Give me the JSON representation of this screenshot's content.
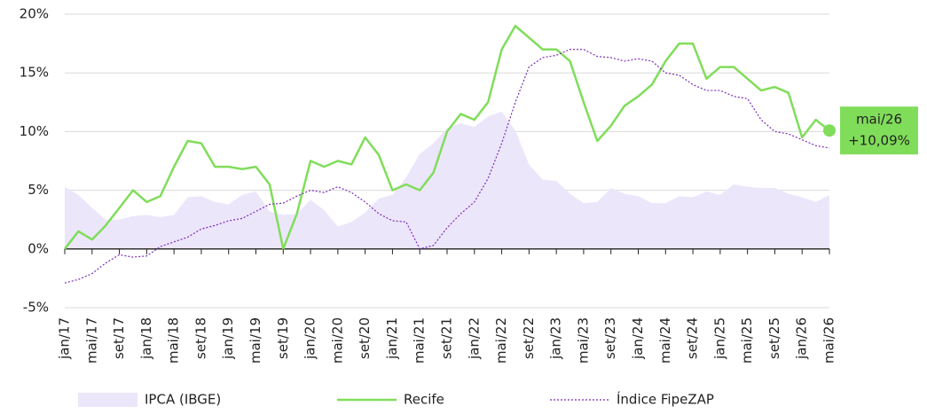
{
  "chart_data": {
    "type": "line",
    "categories": [
      "jan/17",
      null,
      "mai/17",
      null,
      "set/17",
      null,
      "jan/18",
      null,
      "mai/18",
      null,
      "set/18",
      null,
      "jan/19",
      null,
      "mai/19",
      null,
      "set/19",
      null,
      "jan/20",
      null,
      "mai/20",
      null,
      "set/20",
      null,
      "jan/21",
      null,
      "mai/21",
      null,
      "set/21",
      null,
      "jan/22",
      null,
      "mai/22",
      null,
      "set/22",
      null,
      "jan/23",
      null,
      "mai/23",
      null,
      "set/23",
      null,
      "jan/24",
      null,
      "mai/24",
      null,
      "set/24",
      null,
      "jan/25",
      null,
      "mai/25",
      null,
      "set/25",
      null,
      "jan/26",
      null,
      "mai/26"
    ],
    "series": [
      {
        "name": "IPCA (IBGE)",
        "style": "area",
        "color": "#ece6fb",
        "values": [
          5.3,
          4.6,
          3.5,
          2.5,
          2.5,
          2.8,
          2.9,
          2.7,
          2.9,
          4.4,
          4.5,
          4.0,
          3.8,
          4.6,
          4.9,
          3.2,
          2.9,
          3.0,
          4.2,
          3.3,
          1.9,
          2.3,
          3.1,
          4.3,
          4.6,
          6.1,
          8.1,
          9.0,
          10.3,
          10.7,
          10.4,
          11.3,
          11.7,
          10.1,
          7.2,
          5.9,
          5.8,
          4.7,
          3.9,
          4.0,
          5.2,
          4.7,
          4.5,
          3.9,
          3.9,
          4.5,
          4.4,
          4.9,
          4.6,
          5.5,
          5.3,
          5.2,
          5.2,
          4.7,
          4.4,
          4.0,
          4.6
        ]
      },
      {
        "name": "Recife",
        "style": "solid",
        "color": "#80dd5a",
        "values": [
          0.0,
          1.5,
          0.8,
          2.0,
          3.5,
          5.0,
          4.0,
          4.5,
          7.0,
          9.2,
          9.0,
          7.0,
          7.0,
          6.8,
          7.0,
          5.5,
          0.0,
          3.0,
          7.5,
          7.0,
          7.5,
          7.2,
          9.5,
          8.0,
          5.0,
          5.5,
          5.0,
          6.5,
          10.0,
          11.5,
          11.0,
          12.5,
          17.0,
          19.0,
          18.0,
          17.0,
          17.0,
          16.0,
          12.5,
          9.2,
          10.5,
          12.2,
          13.0,
          14.0,
          16.0,
          17.5,
          17.5,
          14.5,
          15.5,
          15.5,
          14.5,
          13.5,
          13.8,
          13.3,
          9.5,
          11.0,
          10.09
        ]
      },
      {
        "name": "Índice FipeZAP",
        "style": "dotted",
        "color": "#7a2cb8",
        "values": [
          -2.9,
          -2.6,
          -2.1,
          -1.2,
          -0.5,
          -0.7,
          -0.6,
          0.2,
          0.6,
          1.0,
          1.7,
          2.0,
          2.4,
          2.6,
          3.2,
          3.8,
          3.9,
          4.5,
          5.0,
          4.8,
          5.3,
          4.8,
          4.0,
          3.0,
          2.4,
          2.3,
          0.0,
          0.3,
          1.8,
          3.0,
          4.0,
          6.0,
          9.0,
          12.5,
          15.5,
          16.3,
          16.5,
          17.0,
          17.0,
          16.4,
          16.3,
          16.0,
          16.2,
          16.0,
          15.0,
          14.8,
          14.0,
          13.5,
          13.5,
          13.0,
          12.8,
          11.0,
          10.0,
          9.8,
          9.3,
          8.8,
          8.6
        ]
      }
    ],
    "ylim": [
      -5,
      20
    ],
    "yticks": [
      {
        "value": -5,
        "label": "-5%"
      },
      {
        "value": 0,
        "label": "0%"
      },
      {
        "value": 5,
        "label": "5%"
      },
      {
        "value": 10,
        "label": "10%"
      },
      {
        "value": 15,
        "label": "15%"
      },
      {
        "value": 20,
        "label": "20%"
      }
    ],
    "grid": true,
    "legend": "bottom",
    "annotation": {
      "label": "mai/26",
      "value": 10.09,
      "value_label": "+10,09%",
      "color": "#80dd5a"
    }
  }
}
